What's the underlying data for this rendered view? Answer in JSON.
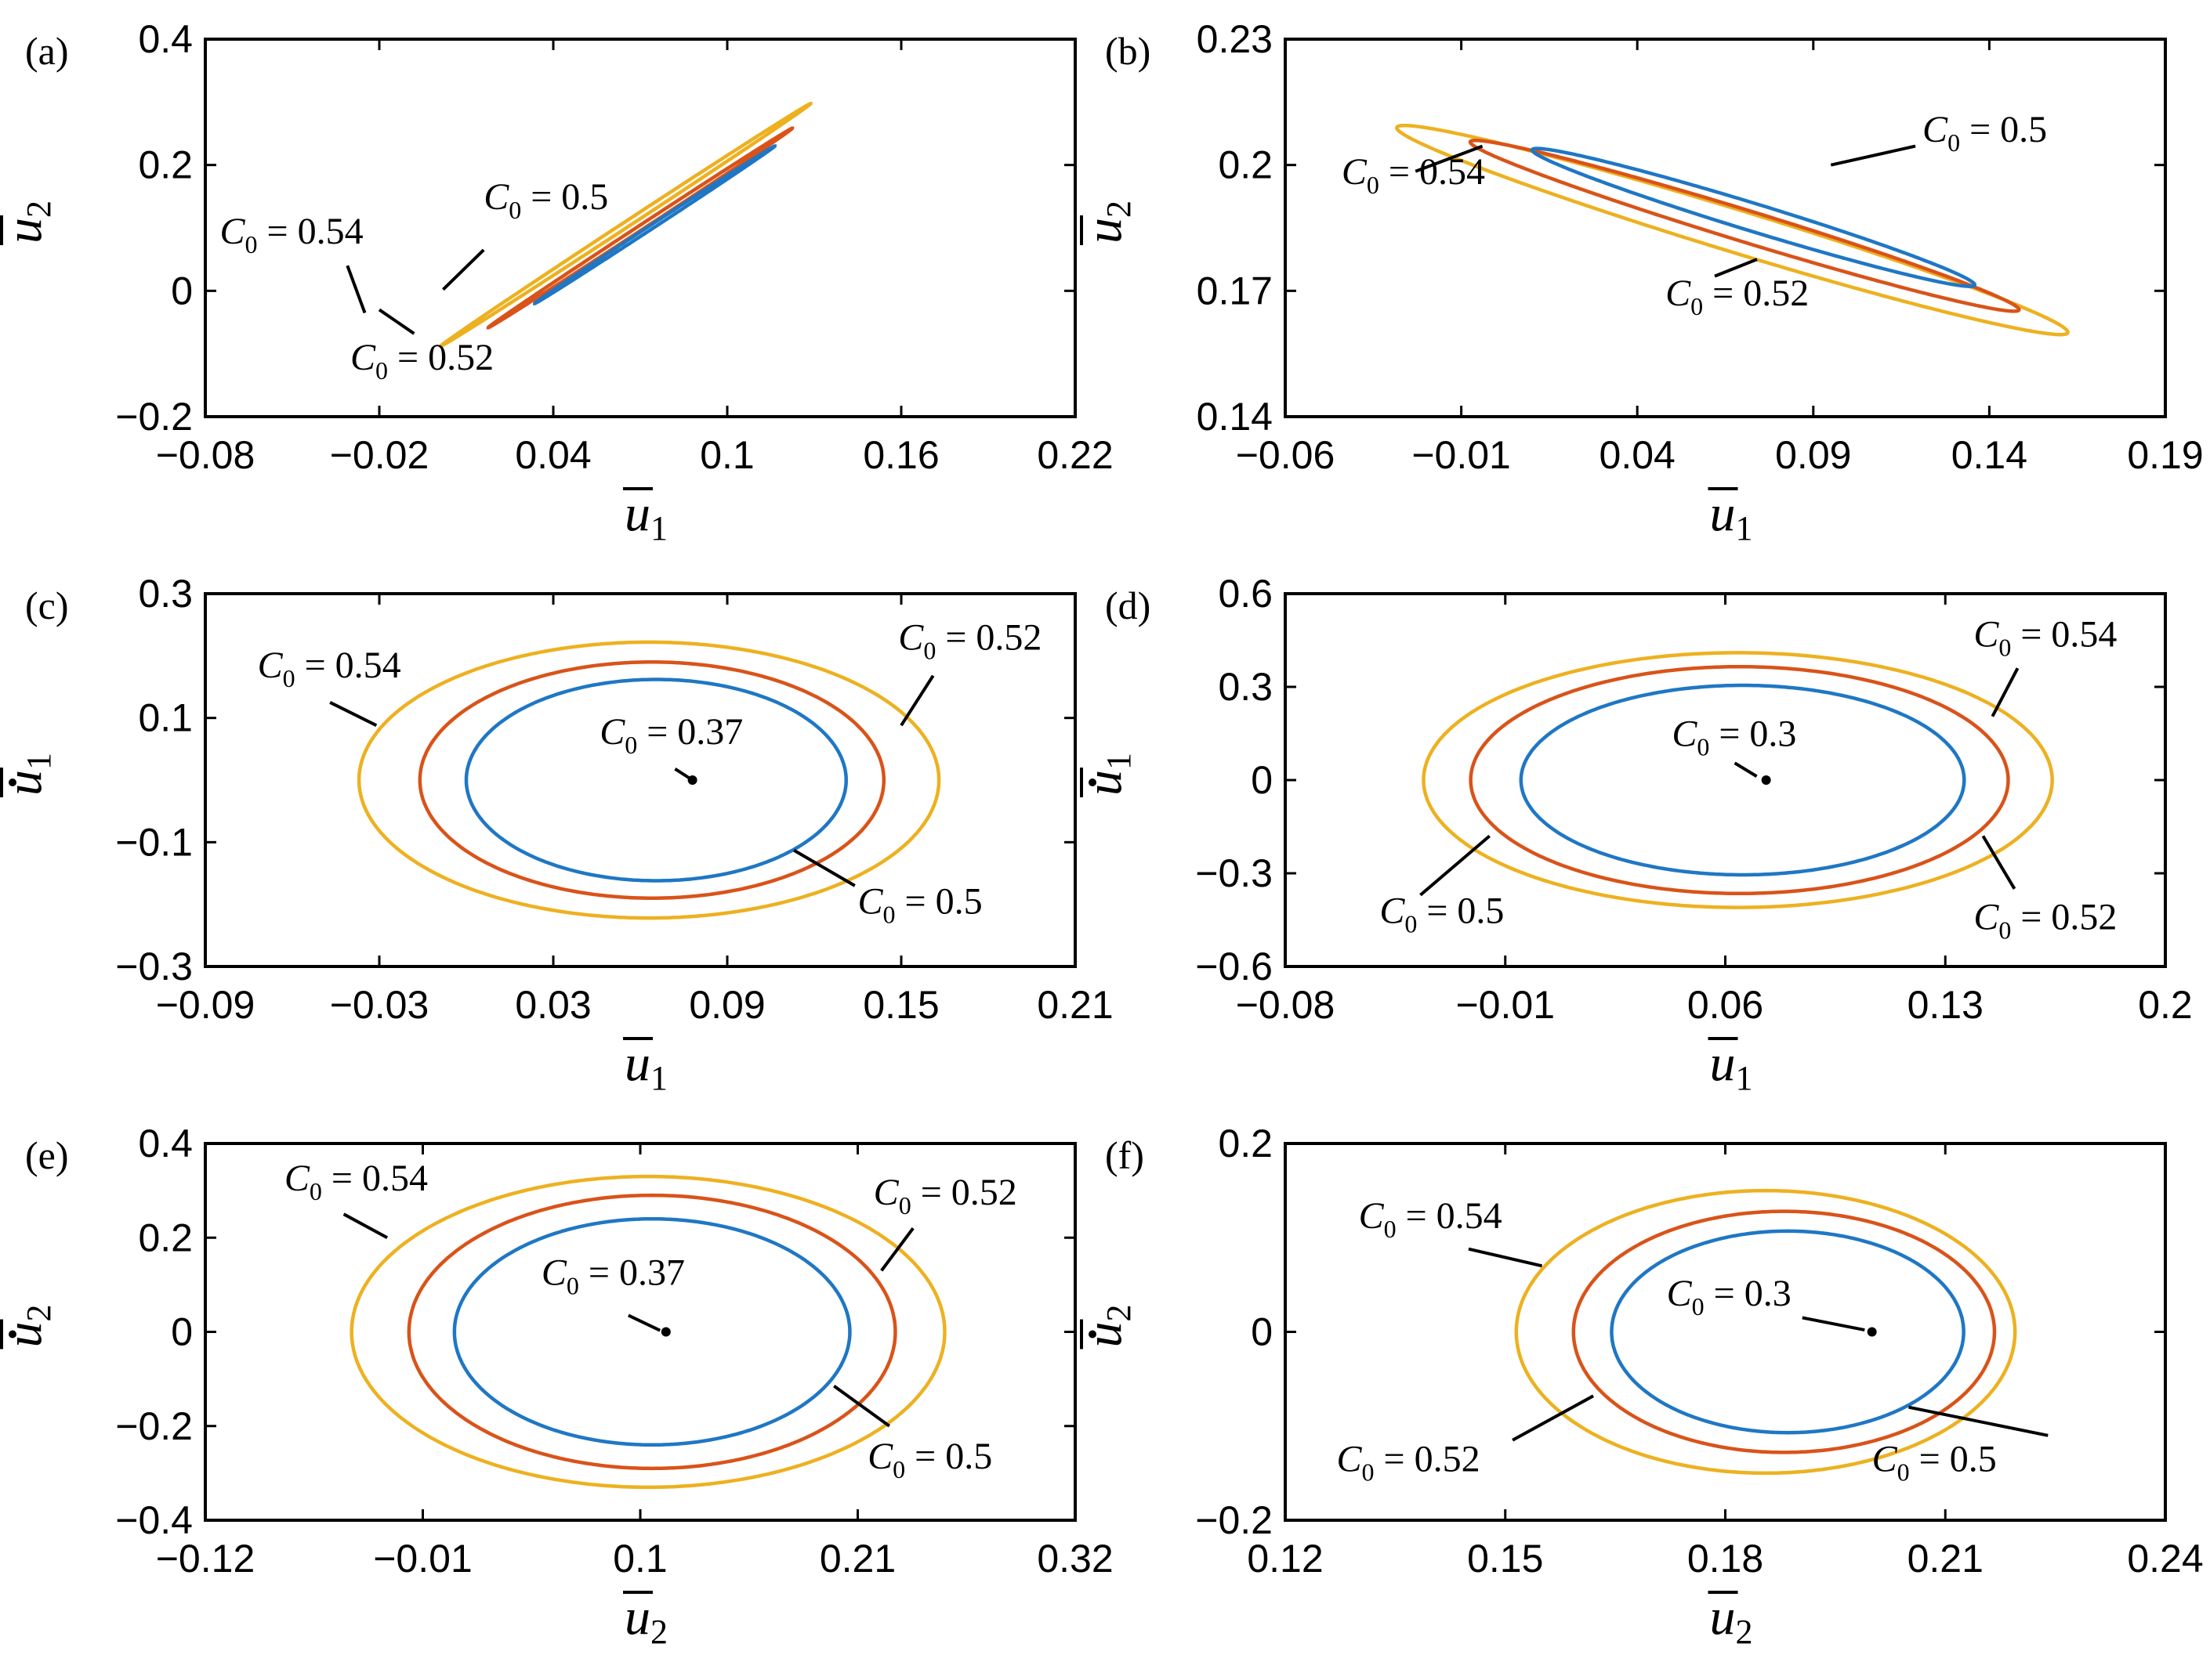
{
  "colors": {
    "c05": "#1f77c4",
    "c052": "#d95319",
    "c054": "#edb120",
    "point": "#000000"
  },
  "chart_data": [
    {
      "id": "a",
      "panel_label": "(a)",
      "type": "line",
      "xlabel": "u",
      "xlabel_sub": "1",
      "xlabel_dot": false,
      "ylabel": "u",
      "ylabel_sub": "2",
      "ylabel_dot": false,
      "xlim": [
        -0.08,
        0.22
      ],
      "ylim": [
        -0.2,
        0.4
      ],
      "xticks": [
        -0.08,
        -0.02,
        0.04,
        0.1,
        0.16,
        0.22
      ],
      "xtick_labels": [
        "−0.08",
        "−0.02",
        "0.04",
        "0.1",
        "0.16",
        "0.22"
      ],
      "yticks": [
        -0.2,
        0,
        0.2,
        0.4
      ],
      "ytick_labels": [
        "−0.2",
        "0",
        "0.2",
        "0.4"
      ],
      "series": [
        {
          "name": "C0 = 0.54",
          "color": "#edb120",
          "shape": "ellipse",
          "cx": 0.065,
          "cy": 0.105,
          "a": 0.1155,
          "b": 0.003,
          "angle_deg": 56.5
        },
        {
          "name": "C0 = 0.52",
          "color": "#d95319",
          "shape": "ellipse",
          "cx": 0.07,
          "cy": 0.1,
          "a": 0.095,
          "b": 0.0025,
          "angle_deg": 56.5
        },
        {
          "name": "C0 = 0.5",
          "color": "#1f77c4",
          "shape": "ellipse",
          "cx": 0.075,
          "cy": 0.105,
          "a": 0.075,
          "b": 0.002,
          "angle_deg": 56.5
        }
      ],
      "annotations": [
        {
          "c": "C",
          "sub": "0",
          "rest": " = 0.54",
          "tx": -0.075,
          "ty": 0.075,
          "lx1": -0.031,
          "ly1": 0.04,
          "lx2": -0.025,
          "ly2": -0.035
        },
        {
          "c": "C",
          "sub": "0",
          "rest": " = 0.5",
          "tx": 0.016,
          "ty": 0.13,
          "lx1": 0.016,
          "ly1": 0.065,
          "lx2": 0.002,
          "ly2": 0.002
        },
        {
          "c": "C",
          "sub": "0",
          "rest": " = 0.52",
          "tx": -0.03,
          "ty": -0.125,
          "lx1": -0.008,
          "ly1": -0.068,
          "lx2": -0.02,
          "ly2": -0.03
        }
      ]
    },
    {
      "id": "b",
      "panel_label": "(b)",
      "type": "line",
      "xlabel": "u",
      "xlabel_sub": "1",
      "xlabel_dot": false,
      "ylabel": "u",
      "ylabel_sub": "2",
      "ylabel_dot": false,
      "xlim": [
        -0.06,
        0.19
      ],
      "ylim": [
        0.14,
        0.23
      ],
      "xticks": [
        -0.06,
        -0.01,
        0.04,
        0.09,
        0.14,
        0.19
      ],
      "xtick_labels": [
        "−0.06",
        "−0.01",
        "0.04",
        "0.09",
        "0.14",
        "0.19"
      ],
      "yticks": [
        0.14,
        0.17,
        0.2,
        0.23
      ],
      "ytick_labels": [
        "0.14",
        "0.17",
        "0.2",
        "0.23"
      ],
      "series": [
        {
          "name": "C0 = 0.54",
          "color": "#edb120",
          "shape": "ellipse",
          "cx": 0.067,
          "cy": 0.1845,
          "a": 0.1172,
          "b": 0.0043,
          "angle_deg": -35.8
        },
        {
          "name": "C0 = 0.52",
          "color": "#d95319",
          "shape": "ellipse",
          "cx": 0.0705,
          "cy": 0.1855,
          "a": 0.0959,
          "b": 0.0032,
          "angle_deg": -35.8
        },
        {
          "name": "C0 = 0.5",
          "color": "#1f77c4",
          "shape": "ellipse",
          "cx": 0.073,
          "cy": 0.1875,
          "a": 0.0773,
          "b": 0.0028,
          "angle_deg": -35.8
        }
      ],
      "annotations": [
        {
          "c": "C",
          "sub": "0",
          "rest": " = 0.5",
          "tx": 0.121,
          "ty": 0.2055,
          "lx1": 0.119,
          "ly1": 0.2045,
          "lx2": 0.095,
          "ly2": 0.2
        },
        {
          "c": "C",
          "sub": "0",
          "rest": " = 0.54",
          "tx": -0.044,
          "ty": 0.1955,
          "lx1": -0.023,
          "ly1": 0.1985,
          "lx2": -0.004,
          "ly2": 0.2045
        },
        {
          "c": "C",
          "sub": "0",
          "rest": " = 0.52",
          "tx": 0.048,
          "ty": 0.1665,
          "lx1": 0.062,
          "ly1": 0.1735,
          "lx2": 0.074,
          "ly2": 0.1775
        }
      ]
    },
    {
      "id": "c",
      "panel_label": "(c)",
      "type": "line",
      "xlabel": "u",
      "xlabel_sub": "1",
      "xlabel_dot": false,
      "ylabel": "u",
      "ylabel_sub": "1",
      "ylabel_dot": true,
      "xlim": [
        -0.09,
        0.21
      ],
      "ylim": [
        -0.3,
        0.3
      ],
      "xticks": [
        -0.09,
        -0.03,
        0.03,
        0.09,
        0.15,
        0.21
      ],
      "xtick_labels": [
        "−0.09",
        "−0.03",
        "0.03",
        "0.09",
        "0.15",
        "0.21"
      ],
      "yticks": [
        -0.3,
        -0.1,
        0.1,
        0.3
      ],
      "ytick_labels": [
        "−0.3",
        "−0.1",
        "0.1",
        "0.3"
      ],
      "series": [
        {
          "name": "C0 = 0.54",
          "color": "#edb120",
          "shape": "ellipse",
          "cx": 0.063,
          "cy": 0.0,
          "a": 0.1,
          "b": 0.222,
          "angle_deg": 0
        },
        {
          "name": "C0 = 0.52",
          "color": "#d95319",
          "shape": "ellipse",
          "cx": 0.064,
          "cy": 0.0,
          "a": 0.08,
          "b": 0.19,
          "angle_deg": 0
        },
        {
          "name": "C0 = 0.5",
          "color": "#1f77c4",
          "shape": "ellipse",
          "cx": 0.0655,
          "cy": 0.0,
          "a": 0.0655,
          "b": 0.162,
          "angle_deg": 0
        },
        {
          "name": "C0 = 0.37",
          "color": "#000000",
          "shape": "point",
          "x": 0.078,
          "y": 0.0
        }
      ],
      "annotations": [
        {
          "c": "C",
          "sub": "0",
          "rest": " = 0.54",
          "tx": -0.072,
          "ty": 0.165,
          "lx1": -0.047,
          "ly1": 0.125,
          "lx2": -0.031,
          "ly2": 0.088
        },
        {
          "c": "C",
          "sub": "0",
          "rest": " = 0.52",
          "tx": 0.149,
          "ty": 0.21,
          "lx1": 0.161,
          "ly1": 0.168,
          "lx2": 0.15,
          "ly2": 0.088
        },
        {
          "c": "C",
          "sub": "0",
          "rest": " = 0.37",
          "tx": 0.046,
          "ty": 0.058,
          "lx1": 0.072,
          "ly1": 0.018,
          "lx2": 0.077,
          "ly2": 0.003
        },
        {
          "c": "C",
          "sub": "0",
          "rest": " = 0.5",
          "tx": 0.135,
          "ty": -0.215,
          "lx1": 0.134,
          "ly1": -0.17,
          "lx2": 0.113,
          "ly2": -0.113
        }
      ]
    },
    {
      "id": "d",
      "panel_label": "(d)",
      "type": "line",
      "xlabel": "u",
      "xlabel_sub": "1",
      "xlabel_dot": false,
      "ylabel": "u",
      "ylabel_sub": "1",
      "ylabel_dot": true,
      "xlim": [
        -0.08,
        0.2
      ],
      "ylim": [
        -0.6,
        0.6
      ],
      "xticks": [
        -0.08,
        -0.01,
        0.06,
        0.13,
        0.2
      ],
      "xtick_labels": [
        "−0.08",
        "−0.01",
        "0.06",
        "0.13",
        "0.2"
      ],
      "yticks": [
        -0.6,
        -0.3,
        0,
        0.3,
        0.6
      ],
      "ytick_labels": [
        "−0.6",
        "−0.3",
        "0",
        "0.3",
        "0.6"
      ],
      "series": [
        {
          "name": "C0 = 0.54",
          "color": "#edb120",
          "shape": "ellipse",
          "cx": 0.064,
          "cy": 0.0,
          "a": 0.1,
          "b": 0.41,
          "angle_deg": 0
        },
        {
          "name": "C0 = 0.52",
          "color": "#d95319",
          "shape": "ellipse",
          "cx": 0.0645,
          "cy": 0.0,
          "a": 0.0855,
          "b": 0.365,
          "angle_deg": 0
        },
        {
          "name": "C0 = 0.5",
          "color": "#1f77c4",
          "shape": "ellipse",
          "cx": 0.0655,
          "cy": 0.0,
          "a": 0.0705,
          "b": 0.305,
          "angle_deg": 0
        },
        {
          "name": "C0 = 0.3",
          "color": "#000000",
          "shape": "point",
          "x": 0.073,
          "y": 0.0
        }
      ],
      "annotations": [
        {
          "c": "C",
          "sub": "0",
          "rest": " = 0.54",
          "tx": 0.139,
          "ty": 0.43,
          "lx1": 0.153,
          "ly1": 0.36,
          "lx2": 0.145,
          "ly2": 0.205
        },
        {
          "c": "C",
          "sub": "0",
          "rest": " = 0.3",
          "tx": 0.043,
          "ty": 0.11,
          "lx1": 0.063,
          "ly1": 0.055,
          "lx2": 0.07,
          "ly2": 0.012
        },
        {
          "c": "C",
          "sub": "0",
          "rest": " = 0.5",
          "tx": -0.05,
          "ty": -0.46,
          "lx1": -0.037,
          "ly1": -0.37,
          "lx2": -0.015,
          "ly2": -0.18
        },
        {
          "c": "C",
          "sub": "0",
          "rest": " = 0.52",
          "tx": 0.139,
          "ty": -0.48,
          "lx1": 0.152,
          "ly1": -0.35,
          "lx2": 0.142,
          "ly2": -0.18
        }
      ]
    },
    {
      "id": "e",
      "panel_label": "(e)",
      "type": "line",
      "xlabel": "u",
      "xlabel_sub": "2",
      "xlabel_dot": false,
      "ylabel": "u",
      "ylabel_sub": "2",
      "ylabel_dot": true,
      "xlim": [
        -0.12,
        0.32
      ],
      "ylim": [
        -0.4,
        0.4
      ],
      "xticks": [
        -0.12,
        -0.01,
        0.1,
        0.21,
        0.32
      ],
      "xtick_labels": [
        "−0.12",
        "−0.01",
        "0.1",
        "0.21",
        "0.32"
      ],
      "yticks": [
        -0.4,
        -0.2,
        0,
        0.2,
        0.4
      ],
      "ytick_labels": [
        "−0.4",
        "−0.2",
        "0",
        "0.2",
        "0.4"
      ],
      "series": [
        {
          "name": "C0 = 0.54",
          "color": "#edb120",
          "shape": "ellipse",
          "cx": 0.104,
          "cy": 0.0,
          "a": 0.15,
          "b": 0.33,
          "angle_deg": 0
        },
        {
          "name": "C0 = 0.52",
          "color": "#d95319",
          "shape": "ellipse",
          "cx": 0.106,
          "cy": 0.0,
          "a": 0.123,
          "b": 0.29,
          "angle_deg": 0
        },
        {
          "name": "C0 = 0.5",
          "color": "#1f77c4",
          "shape": "ellipse",
          "cx": 0.106,
          "cy": 0.0,
          "a": 0.1,
          "b": 0.24,
          "angle_deg": 0
        },
        {
          "name": "C0 = 0.37",
          "color": "#000000",
          "shape": "point",
          "x": 0.113,
          "y": 0.0
        }
      ],
      "annotations": [
        {
          "c": "C",
          "sub": "0",
          "rest": " = 0.54",
          "tx": -0.08,
          "ty": 0.3,
          "lx1": -0.05,
          "ly1": 0.25,
          "lx2": -0.028,
          "ly2": 0.2
        },
        {
          "c": "C",
          "sub": "0",
          "rest": " = 0.52",
          "tx": 0.218,
          "ty": 0.27,
          "lx1": 0.238,
          "ly1": 0.22,
          "lx2": 0.222,
          "ly2": 0.13
        },
        {
          "c": "C",
          "sub": "0",
          "rest": " = 0.37",
          "tx": 0.05,
          "ty": 0.1,
          "lx1": 0.094,
          "ly1": 0.035,
          "lx2": 0.11,
          "ly2": 0.003
        },
        {
          "c": "C",
          "sub": "0",
          "rest": " = 0.5",
          "tx": 0.215,
          "ty": -0.29,
          "lx1": 0.226,
          "ly1": -0.2,
          "lx2": 0.198,
          "ly2": -0.115
        }
      ]
    },
    {
      "id": "f",
      "panel_label": "(f)",
      "type": "line",
      "xlabel": "u",
      "xlabel_sub": "2",
      "xlabel_dot": false,
      "ylabel": "u",
      "ylabel_sub": "2",
      "ylabel_dot": true,
      "xlim": [
        0.12,
        0.24
      ],
      "ylim": [
        -0.2,
        0.2
      ],
      "xticks": [
        0.12,
        0.15,
        0.18,
        0.21,
        0.24
      ],
      "xtick_labels": [
        "0.12",
        "0.15",
        "0.18",
        "0.21",
        "0.24"
      ],
      "yticks": [
        -0.2,
        0,
        0.2
      ],
      "ytick_labels": [
        "−0.2",
        "0",
        "0.2"
      ],
      "series": [
        {
          "name": "C0 = 0.54",
          "color": "#edb120",
          "shape": "ellipse",
          "cx": 0.1855,
          "cy": 0.0,
          "a": 0.034,
          "b": 0.15,
          "angle_deg": 0
        },
        {
          "name": "C0 = 0.52",
          "color": "#d95319",
          "shape": "ellipse",
          "cx": 0.188,
          "cy": 0.0,
          "a": 0.0287,
          "b": 0.128,
          "angle_deg": 0
        },
        {
          "name": "C0 = 0.5",
          "color": "#1f77c4",
          "shape": "ellipse",
          "cx": 0.1885,
          "cy": 0.0,
          "a": 0.024,
          "b": 0.107,
          "angle_deg": 0
        },
        {
          "name": "C0 = 0.3",
          "color": "#000000",
          "shape": "point",
          "x": 0.2,
          "y": 0.0
        }
      ],
      "annotations": [
        {
          "c": "C",
          "sub": "0",
          "rest": " = 0.54",
          "tx": 0.13,
          "ty": 0.11,
          "lx1": 0.145,
          "ly1": 0.088,
          "lx2": 0.155,
          "ly2": 0.07
        },
        {
          "c": "C",
          "sub": "0",
          "rest": " = 0.3",
          "tx": 0.172,
          "ty": 0.028,
          "lx1": 0.1905,
          "ly1": 0.015,
          "lx2": 0.199,
          "ly2": 0.002
        },
        {
          "c": "C",
          "sub": "0",
          "rest": " = 0.52",
          "tx": 0.127,
          "ty": -0.148,
          "lx1": 0.151,
          "ly1": -0.115,
          "lx2": 0.162,
          "ly2": -0.068
        },
        {
          "c": "C",
          "sub": "0",
          "rest": " = 0.5",
          "tx": 0.2,
          "ty": -0.148,
          "lx1": 0.224,
          "ly1": -0.11,
          "lx2": 0.205,
          "ly2": -0.08
        }
      ]
    }
  ]
}
